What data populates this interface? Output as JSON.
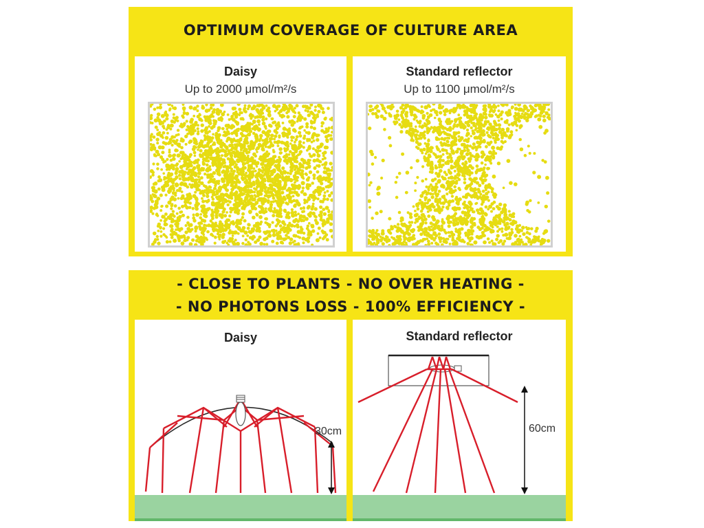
{
  "top_section": {
    "title": "OPTIMUM COVERAGE OF CULTURE AREA",
    "left_panel": {
      "name": "Daisy",
      "intensity": "Up to 2000 μmol/m²/s"
    },
    "right_panel": {
      "name": "Standard reflector",
      "intensity": "Up to 1100 μmol/m²/s"
    }
  },
  "bottom_section": {
    "title_line1": "- CLOSE TO PLANTS - NO OVER HEATING -",
    "title_line2": "- NO PHOTONS LOSS - 100% EFFICIENCY -",
    "left_panel": {
      "name": "Daisy",
      "distance": "30cm"
    },
    "right_panel": {
      "name": "Standard reflector",
      "distance": "60cm"
    }
  },
  "colors": {
    "frame_yellow": "#f6e416",
    "dot_yellow": "#e6dc12",
    "ray_red": "#d81e2a",
    "ground_green": "#9ad3a0",
    "text_dark": "#1c1c1c"
  }
}
